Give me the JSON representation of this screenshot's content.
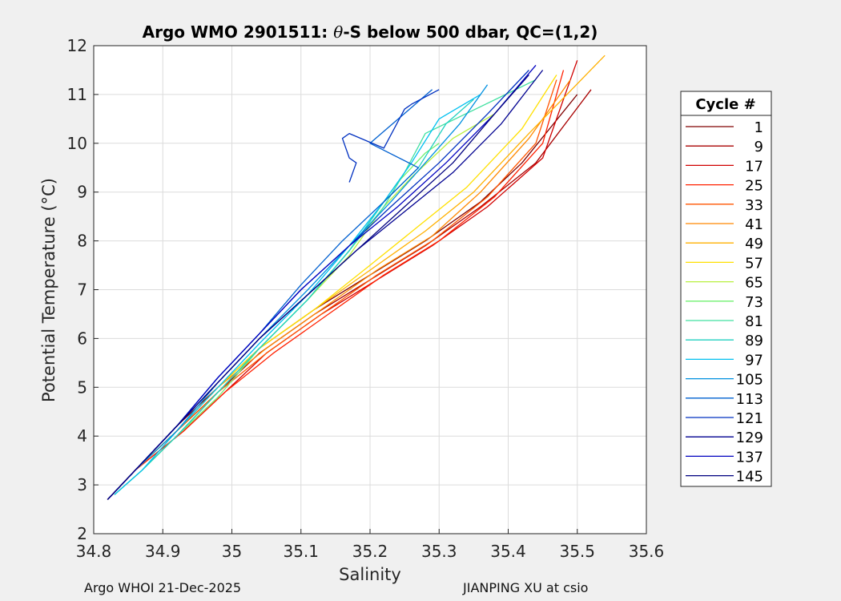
{
  "chart_data": {
    "type": "line",
    "title_prefix": "Argo WMO 2901511: ",
    "title_symbol": "θ",
    "title_suffix": "-S below 500 dbar,  QC=(1,2)",
    "xlabel": "Salinity",
    "ylabel": "Potential Temperature (°C)",
    "xlim": [
      34.8,
      35.6
    ],
    "ylim": [
      2,
      12
    ],
    "xticks": [
      34.8,
      34.9,
      35,
      35.1,
      35.2,
      35.3,
      35.4,
      35.5,
      35.6
    ],
    "xtick_labels": [
      "34.8",
      "34.9",
      "35",
      "35.1",
      "35.2",
      "35.3",
      "35.4",
      "35.5",
      "35.6"
    ],
    "yticks": [
      2,
      3,
      4,
      5,
      6,
      7,
      8,
      9,
      10,
      11,
      12
    ],
    "ytick_labels": [
      "2",
      "3",
      "4",
      "5",
      "6",
      "7",
      "8",
      "9",
      "10",
      "11",
      "12"
    ],
    "grid": true,
    "legend": {
      "title": "Cycle #",
      "position": "right",
      "entries": [
        {
          "label": "1",
          "color": "#800000"
        },
        {
          "label": "9",
          "color": "#a80000"
        },
        {
          "label": "17",
          "color": "#d00000"
        },
        {
          "label": "25",
          "color": "#ff2000"
        },
        {
          "label": "33",
          "color": "#ff5500"
        },
        {
          "label": "41",
          "color": "#ff8800"
        },
        {
          "label": "49",
          "color": "#ffb000"
        },
        {
          "label": "57",
          "color": "#ffe000"
        },
        {
          "label": "65",
          "color": "#b8f040"
        },
        {
          "label": "73",
          "color": "#70f070"
        },
        {
          "label": "81",
          "color": "#40e0a0"
        },
        {
          "label": "89",
          "color": "#20d0c0"
        },
        {
          "label": "97",
          "color": "#00c0f0"
        },
        {
          "label": "105",
          "color": "#0090e0"
        },
        {
          "label": "113",
          "color": "#0060d0"
        },
        {
          "label": "121",
          "color": "#0030c0"
        },
        {
          "label": "129",
          "color": "#000090"
        },
        {
          "label": "137",
          "color": "#0000c0"
        },
        {
          "label": "145",
          "color": "#000080"
        }
      ]
    },
    "series": [
      {
        "name": "1",
        "color": "#800000",
        "x": [
          34.82,
          34.86,
          34.92,
          34.98,
          35.04,
          35.12,
          35.2,
          35.28,
          35.36,
          35.42,
          35.5
        ],
        "y": [
          2.7,
          3.3,
          4.2,
          5.0,
          5.8,
          6.6,
          7.3,
          8.0,
          8.8,
          9.6,
          11.0
        ]
      },
      {
        "name": "9",
        "color": "#a80000",
        "x": [
          34.82,
          34.86,
          34.92,
          34.98,
          35.04,
          35.12,
          35.2,
          35.28,
          35.36,
          35.44,
          35.52
        ],
        "y": [
          2.7,
          3.3,
          4.1,
          4.9,
          5.7,
          6.5,
          7.2,
          7.9,
          8.7,
          9.6,
          11.1
        ]
      },
      {
        "name": "17",
        "color": "#d00000",
        "x": [
          34.82,
          34.86,
          34.93,
          34.99,
          35.05,
          35.13,
          35.21,
          35.29,
          35.37,
          35.45,
          35.5
        ],
        "y": [
          2.7,
          3.3,
          4.1,
          4.9,
          5.7,
          6.5,
          7.2,
          7.9,
          8.7,
          9.7,
          11.7
        ]
      },
      {
        "name": "25",
        "color": "#ff2000",
        "x": [
          34.82,
          34.86,
          34.93,
          34.99,
          35.06,
          35.14,
          35.22,
          35.3,
          35.38,
          35.45,
          35.48
        ],
        "y": [
          2.7,
          3.3,
          4.1,
          4.9,
          5.7,
          6.5,
          7.3,
          8.0,
          8.9,
          10.0,
          11.5
        ]
      },
      {
        "name": "33",
        "color": "#ff5500",
        "x": [
          34.82,
          34.86,
          34.92,
          34.98,
          35.05,
          35.13,
          35.21,
          35.29,
          35.37,
          35.44,
          35.47
        ],
        "y": [
          2.7,
          3.3,
          4.1,
          4.9,
          5.7,
          6.5,
          7.3,
          8.0,
          8.9,
          10.0,
          11.3
        ]
      },
      {
        "name": "41",
        "color": "#ff8800",
        "x": [
          34.82,
          34.86,
          34.92,
          34.98,
          35.05,
          35.13,
          35.21,
          35.29,
          35.36,
          35.43,
          35.49
        ],
        "y": [
          2.7,
          3.3,
          4.1,
          5.0,
          5.8,
          6.6,
          7.4,
          8.1,
          9.0,
          10.1,
          11.3
        ]
      },
      {
        "name": "49",
        "color": "#ffb000",
        "x": [
          34.82,
          34.86,
          34.92,
          34.98,
          35.04,
          35.12,
          35.2,
          35.28,
          35.35,
          35.43,
          35.54
        ],
        "y": [
          2.7,
          3.3,
          4.1,
          5.0,
          5.8,
          6.6,
          7.4,
          8.2,
          9.0,
          10.2,
          11.8
        ]
      },
      {
        "name": "57",
        "color": "#ffe000",
        "x": [
          34.82,
          34.86,
          34.92,
          34.98,
          35.04,
          35.12,
          35.2,
          35.27,
          35.34,
          35.42,
          35.47
        ],
        "y": [
          2.7,
          3.3,
          4.1,
          5.0,
          5.8,
          6.6,
          7.5,
          8.3,
          9.1,
          10.3,
          11.4
        ]
      },
      {
        "name": "65",
        "color": "#b8f040",
        "x": [
          34.83,
          34.87,
          34.92,
          34.98,
          35.04,
          35.11,
          35.17,
          35.22,
          35.26,
          35.32,
          35.38
        ],
        "y": [
          2.8,
          3.3,
          4.0,
          4.9,
          5.8,
          6.8,
          7.7,
          8.7,
          9.3,
          10.1,
          10.6
        ]
      },
      {
        "name": "73",
        "color": "#70f070",
        "x": [
          34.83,
          34.87,
          34.92,
          34.98,
          35.04,
          35.11,
          35.17,
          35.21,
          35.24,
          35.28,
          35.3
        ],
        "y": [
          2.8,
          3.3,
          4.0,
          4.8,
          5.8,
          6.8,
          7.8,
          8.6,
          9.2,
          9.8,
          10.0
        ]
      },
      {
        "name": "81",
        "color": "#40e0a0",
        "x": [
          34.83,
          34.87,
          34.92,
          34.98,
          35.04,
          35.11,
          35.17,
          35.22,
          35.25,
          35.28,
          35.44
        ],
        "y": [
          2.8,
          3.3,
          4.0,
          4.9,
          5.8,
          6.8,
          7.8,
          8.7,
          9.4,
          10.2,
          11.3
        ]
      },
      {
        "name": "89",
        "color": "#20d0c0",
        "x": [
          34.83,
          34.87,
          34.92,
          34.98,
          35.04,
          35.11,
          35.17,
          35.22,
          35.27,
          35.31,
          35.35
        ],
        "y": [
          2.8,
          3.3,
          4.0,
          4.9,
          5.8,
          6.8,
          7.8,
          8.8,
          9.5,
          10.4,
          10.9
        ]
      },
      {
        "name": "97",
        "color": "#00c0f0",
        "x": [
          34.83,
          34.87,
          34.92,
          34.98,
          35.04,
          35.11,
          35.17,
          35.22,
          35.26,
          35.3,
          35.36
        ],
        "y": [
          2.8,
          3.3,
          4.1,
          5.0,
          5.9,
          6.9,
          7.9,
          8.8,
          9.6,
          10.5,
          11.0
        ]
      },
      {
        "name": "105",
        "color": "#0090e0",
        "x": [
          34.82,
          34.86,
          34.92,
          34.98,
          35.04,
          35.11,
          35.17,
          35.23,
          35.28,
          35.33,
          35.37
        ],
        "y": [
          2.7,
          3.3,
          4.1,
          5.1,
          6.0,
          7.0,
          7.9,
          8.8,
          9.6,
          10.4,
          11.2
        ]
      },
      {
        "name": "113",
        "color": "#0060d0",
        "x": [
          34.82,
          34.86,
          34.92,
          34.98,
          35.04,
          35.1,
          35.16,
          35.22,
          35.27,
          35.2,
          35.29
        ],
        "y": [
          2.7,
          3.3,
          4.2,
          5.2,
          6.1,
          7.1,
          8.0,
          8.8,
          9.5,
          10.0,
          11.1
        ]
      },
      {
        "name": "121",
        "color": "#0030c0",
        "x": [
          34.82,
          34.86,
          34.92,
          34.98,
          35.04,
          35.1,
          35.17,
          35.23,
          35.3,
          35.37,
          35.43
        ],
        "y": [
          2.7,
          3.3,
          4.2,
          5.2,
          6.1,
          7.0,
          7.9,
          8.7,
          9.6,
          10.6,
          11.5
        ]
      },
      {
        "name": "129",
        "color": "#000090",
        "x": [
          34.82,
          34.86,
          34.92,
          34.98,
          35.04,
          35.11,
          35.18,
          35.25,
          35.32,
          35.39,
          35.45
        ],
        "y": [
          2.7,
          3.3,
          4.2,
          5.1,
          6.0,
          6.9,
          7.8,
          8.6,
          9.4,
          10.4,
          11.5
        ]
      },
      {
        "name": "137",
        "color": "#0000c0",
        "x": [
          34.82,
          34.86,
          34.92,
          34.98,
          35.04,
          35.1,
          35.17,
          35.24,
          35.31,
          35.38,
          35.44
        ],
        "y": [
          2.7,
          3.3,
          4.2,
          5.2,
          6.1,
          7.0,
          7.9,
          8.7,
          9.6,
          10.6,
          11.6
        ]
      },
      {
        "name": "145",
        "color": "#000080",
        "x": [
          34.82,
          34.86,
          34.92,
          34.98,
          35.04,
          35.11,
          35.18,
          35.25,
          35.32,
          35.38,
          35.43
        ],
        "y": [
          2.7,
          3.3,
          4.2,
          5.1,
          6.0,
          6.9,
          7.8,
          8.7,
          9.6,
          10.6,
          11.4
        ]
      },
      {
        "name": "121",
        "color": "#0030c0",
        "x": [
          35.17,
          35.18,
          35.17,
          35.16,
          35.17,
          35.22,
          35.25,
          35.26,
          35.3
        ],
        "y": [
          9.2,
          9.6,
          9.7,
          10.1,
          10.2,
          9.9,
          10.7,
          10.8,
          11.1
        ]
      }
    ]
  },
  "footer": {
    "left": "Argo WHOI 21-Dec-2025",
    "right": "JIANPING XU at csio"
  }
}
